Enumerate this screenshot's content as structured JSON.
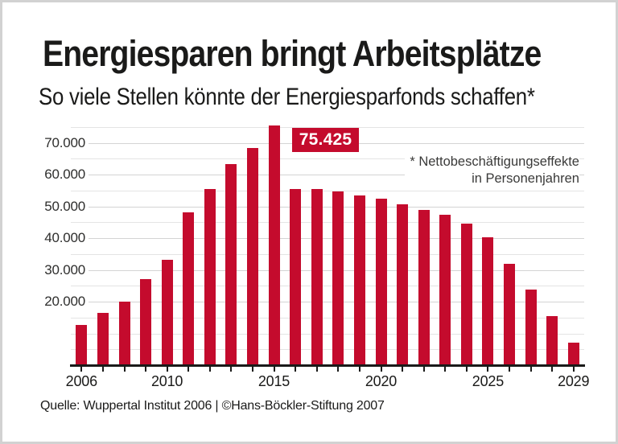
{
  "header": {
    "title": "Energiesparen bringt Arbeitsplätze",
    "subtitle": "So viele Stellen könnte der Energiesparfonds schaffen*"
  },
  "footnote": {
    "line1": "* Nettobeschäftigungseffekte",
    "line2": "in Personenjahren"
  },
  "footer": {
    "source": "Quelle: Wuppertal Institut 2006 | ©Hans-Böckler-Stiftung 2007"
  },
  "colors": {
    "bar": "#c40b2d",
    "callout_bg": "#c40b2d",
    "callout_text": "#ffffff",
    "text": "#1a1a19",
    "grid_minor": "#e4e4e4",
    "grid_major": "#d4d4d4",
    "axis": "#1a1a19",
    "page_border": "#d2d2d2"
  },
  "chart_data": {
    "type": "bar",
    "title": "Energiesparen bringt Arbeitsplätze",
    "subtitle": "So viele Stellen könnte der Energiesparfonds schaffen*",
    "categories": [
      "2006",
      "2007",
      "2008",
      "2009",
      "2010",
      "2011",
      "2012",
      "2013",
      "2014",
      "2015",
      "2016",
      "2017",
      "2018",
      "2019",
      "2020",
      "2021",
      "2022",
      "2023",
      "2024",
      "2025",
      "2026",
      "2027",
      "2028",
      "2029"
    ],
    "values": [
      12700,
      16500,
      20000,
      27000,
      33100,
      48100,
      55600,
      63400,
      68500,
      75425,
      55600,
      55600,
      54800,
      53400,
      52400,
      50600,
      48900,
      47400,
      44600,
      40400,
      32000,
      23800,
      15500,
      7000
    ],
    "peak": {
      "category": "2015",
      "value": 75425,
      "label": "75.425"
    },
    "annotation": "* Nettobeschäftigungseffekte in Personenjahren",
    "ylim": [
      0,
      77500
    ],
    "grid": true,
    "grid_interval": 5000,
    "grid_top": 75000,
    "yticks_labeled": [
      20000,
      30000,
      40000,
      50000,
      60000,
      70000
    ],
    "ytick_labels": [
      "20.000",
      "30.000",
      "40.000",
      "50.000",
      "60.000",
      "70.000"
    ],
    "xticks_labeled": [
      "2006",
      "2010",
      "2015",
      "2020",
      "2025",
      "2029"
    ],
    "legend": null,
    "bar_color": "#c40b2d"
  }
}
